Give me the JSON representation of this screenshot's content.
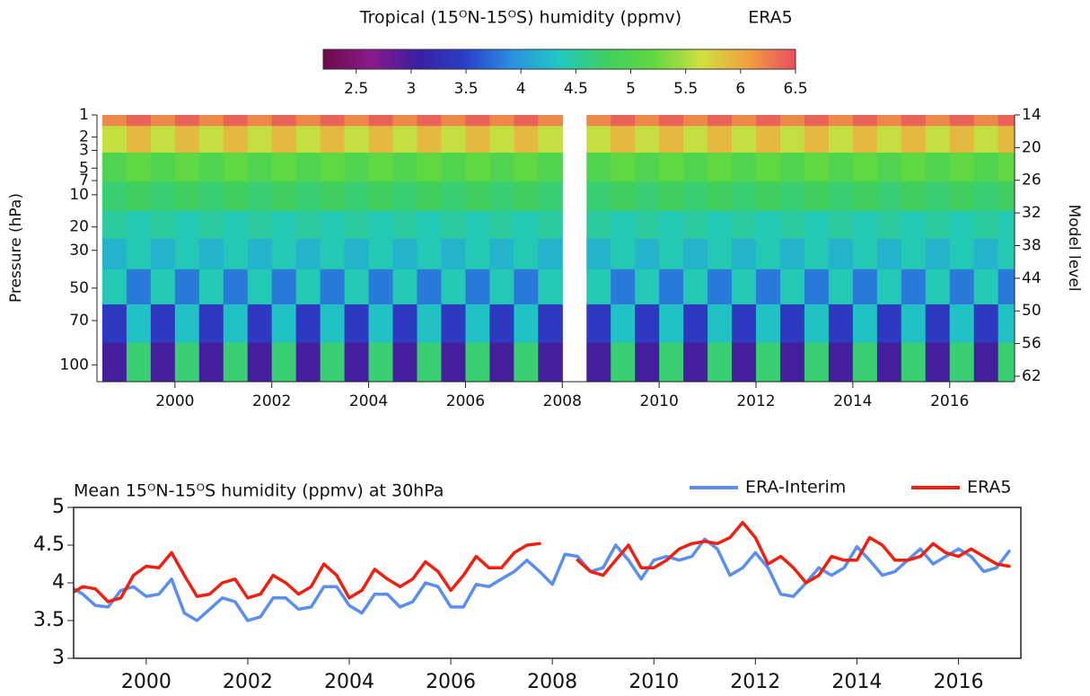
{
  "chart_data": [
    {
      "type": "heatmap",
      "title": "Tropical (15ᴼN-15ᴼS) humidity (ppmv)",
      "subtitle": "ERA5",
      "y_label": "Pressure (hPa)",
      "y2_label": "Model level",
      "clim": [
        2.2,
        6.5
      ],
      "cticks": [
        2.5,
        3,
        3.5,
        4,
        4.5,
        5,
        5.5,
        6,
        6.5
      ],
      "colormap": [
        "#6b0a4a",
        "#8a1a8a",
        "#3a1fa0",
        "#2840c8",
        "#2a90e0",
        "#20c8c0",
        "#40d060",
        "#60d840",
        "#d0e040",
        "#f0a040",
        "#e85060"
      ],
      "xlim": [
        1998.39,
        2017.34
      ],
      "xticks": [
        2000,
        2002,
        2004,
        2006,
        2008,
        2010,
        2012,
        2014,
        2016
      ],
      "ylim": [
        1,
        112
      ],
      "yticks": [
        1,
        2,
        3,
        5,
        7,
        10,
        20,
        30,
        50,
        70,
        100
      ],
      "y2lim": [
        14,
        63
      ],
      "y2ticks": [
        14,
        20,
        26,
        32,
        38,
        44,
        50,
        56,
        62
      ],
      "x": [
        1998.75,
        1999.25,
        1999.75,
        2000.25,
        2000.75,
        2001.25,
        2001.75,
        2002.25,
        2002.75,
        2003.25,
        2003.75,
        2004.25,
        2004.75,
        2005.25,
        2005.75,
        2006.25,
        2006.75,
        2007.25,
        2007.75,
        2008.25,
        2008.75,
        2009.25,
        2009.75,
        2010.25,
        2010.75,
        2011.25,
        2011.75,
        2012.25,
        2012.75,
        2013.25,
        2013.75,
        2014.25,
        2014.75,
        2015.25,
        2015.75,
        2016.25,
        2016.75,
        2017.25
      ],
      "levels": [
        1,
        2,
        5,
        10,
        20,
        30,
        50,
        70,
        100
      ],
      "values": [
        [
          6.2,
          6.4,
          6.2,
          6.4,
          6.2,
          6.4,
          6.2,
          6.4,
          6.2,
          6.4,
          6.2,
          6.4,
          6.2,
          6.4,
          6.2,
          6.4,
          6.2,
          6.4,
          6.2,
          null,
          6.2,
          6.4,
          6.2,
          6.4,
          6.2,
          6.4,
          6.2,
          6.4,
          6.2,
          6.4,
          6.2,
          6.4,
          6.2,
          6.4,
          6.2,
          6.4,
          6.2,
          6.4
        ],
        [
          5.6,
          5.9,
          5.6,
          5.9,
          5.6,
          5.9,
          5.6,
          5.9,
          5.6,
          5.9,
          5.6,
          5.9,
          5.6,
          5.9,
          5.6,
          5.9,
          5.6,
          5.9,
          5.6,
          null,
          5.6,
          5.9,
          5.6,
          5.9,
          5.6,
          5.9,
          5.6,
          5.9,
          5.6,
          5.9,
          5.6,
          5.9,
          5.6,
          5.9,
          5.6,
          5.9,
          5.6,
          5.9
        ],
        [
          5.0,
          5.2,
          5.0,
          5.2,
          5.0,
          5.2,
          5.0,
          5.2,
          5.0,
          5.2,
          5.0,
          5.2,
          5.0,
          5.2,
          5.0,
          5.2,
          5.0,
          5.2,
          5.0,
          null,
          5.0,
          5.2,
          5.0,
          5.2,
          5.0,
          5.2,
          5.0,
          5.2,
          5.0,
          5.2,
          5.0,
          5.2,
          5.0,
          5.2,
          5.0,
          5.2,
          5.0,
          5.2
        ],
        [
          4.7,
          4.8,
          4.7,
          4.8,
          4.7,
          4.8,
          4.7,
          4.8,
          4.7,
          4.8,
          4.7,
          4.8,
          4.7,
          4.8,
          4.7,
          4.8,
          4.7,
          4.8,
          4.7,
          null,
          4.7,
          4.8,
          4.7,
          4.8,
          4.7,
          4.8,
          4.7,
          4.8,
          4.7,
          4.8,
          4.7,
          4.8,
          4.7,
          4.8,
          4.7,
          4.8,
          4.7,
          4.8
        ],
        [
          4.5,
          4.4,
          4.5,
          4.4,
          4.5,
          4.4,
          4.5,
          4.4,
          4.5,
          4.4,
          4.5,
          4.4,
          4.5,
          4.4,
          4.5,
          4.4,
          4.5,
          4.4,
          4.5,
          null,
          4.5,
          4.4,
          4.5,
          4.4,
          4.5,
          4.4,
          4.5,
          4.4,
          4.5,
          4.4,
          4.5,
          4.4,
          4.5,
          4.4,
          4.5,
          4.4,
          4.5,
          4.4
        ],
        [
          4.2,
          4.4,
          4.2,
          4.4,
          4.2,
          4.4,
          4.2,
          4.4,
          4.2,
          4.4,
          4.2,
          4.4,
          4.2,
          4.4,
          4.2,
          4.4,
          4.2,
          4.4,
          4.2,
          null,
          4.2,
          4.4,
          4.2,
          4.4,
          4.2,
          4.4,
          4.2,
          4.4,
          4.2,
          4.4,
          4.2,
          4.4,
          4.2,
          4.4,
          4.2,
          4.4,
          4.2,
          4.4
        ],
        [
          4.4,
          3.8,
          4.4,
          3.8,
          4.4,
          3.8,
          4.4,
          3.8,
          4.4,
          3.8,
          4.4,
          3.8,
          4.4,
          3.8,
          4.4,
          3.8,
          4.4,
          3.8,
          4.4,
          null,
          4.4,
          3.8,
          4.4,
          3.8,
          4.4,
          3.8,
          4.4,
          3.8,
          4.4,
          3.8,
          4.4,
          3.8,
          4.4,
          3.8,
          4.4,
          3.8,
          4.4,
          3.8
        ],
        [
          3.4,
          4.3,
          3.4,
          4.3,
          3.4,
          4.3,
          3.4,
          4.3,
          3.4,
          4.3,
          3.4,
          4.3,
          3.4,
          4.3,
          3.4,
          4.3,
          3.4,
          4.3,
          3.4,
          null,
          3.4,
          4.3,
          3.4,
          4.3,
          3.4,
          4.3,
          3.4,
          4.3,
          3.4,
          4.3,
          3.4,
          4.3,
          3.4,
          4.3,
          3.4,
          4.3,
          3.4,
          4.3
        ],
        [
          3.0,
          4.7,
          3.0,
          4.7,
          3.0,
          4.7,
          3.0,
          4.7,
          3.0,
          4.7,
          3.0,
          4.7,
          3.0,
          4.7,
          3.0,
          4.7,
          3.0,
          4.7,
          3.0,
          null,
          3.0,
          4.7,
          3.0,
          4.7,
          3.0,
          4.7,
          3.0,
          4.7,
          3.0,
          4.7,
          3.0,
          4.7,
          3.0,
          4.7,
          3.0,
          4.7,
          3.0,
          4.7
        ]
      ]
    },
    {
      "type": "line",
      "title": "Mean 15ᴼN-15ᴼS humidity (ppmv) at 30hPa",
      "xlim": [
        1998.57,
        2017.23
      ],
      "xticks": [
        2000,
        2002,
        2004,
        2006,
        2008,
        2010,
        2012,
        2014,
        2016
      ],
      "ylim": [
        3,
        5
      ],
      "yticks": [
        3,
        3.5,
        4,
        4.5,
        5
      ],
      "x": [
        1998.5,
        1998.75,
        1999,
        1999.25,
        1999.5,
        1999.75,
        2000,
        2000.25,
        2000.5,
        2000.75,
        2001,
        2001.25,
        2001.5,
        2001.75,
        2002,
        2002.25,
        2002.5,
        2002.75,
        2003,
        2003.25,
        2003.5,
        2003.75,
        2004,
        2004.25,
        2004.5,
        2004.75,
        2005,
        2005.25,
        2005.5,
        2005.75,
        2006,
        2006.25,
        2006.5,
        2006.75,
        2007,
        2007.25,
        2007.5,
        2007.75,
        2008,
        2008.25,
        2008.5,
        2008.75,
        2009,
        2009.25,
        2009.5,
        2009.75,
        2010,
        2010.25,
        2010.5,
        2010.75,
        2011,
        2011.25,
        2011.5,
        2011.75,
        2012,
        2012.25,
        2012.5,
        2012.75,
        2013,
        2013.25,
        2013.5,
        2013.75,
        2014,
        2014.25,
        2014.5,
        2014.75,
        2015,
        2015.25,
        2015.5,
        2015.75,
        2016,
        2016.25,
        2016.5,
        2016.75,
        2017
      ],
      "series": [
        {
          "name": "ERA-Interim",
          "color": "#5a8ef0",
          "values": [
            3.95,
            3.85,
            3.7,
            3.68,
            3.9,
            3.95,
            3.82,
            3.85,
            4.05,
            3.6,
            3.5,
            3.65,
            3.8,
            3.75,
            3.5,
            3.55,
            3.8,
            3.8,
            3.65,
            3.68,
            3.95,
            3.95,
            3.7,
            3.6,
            3.85,
            3.85,
            3.68,
            3.75,
            4.0,
            3.95,
            3.68,
            3.68,
            3.98,
            3.95,
            4.05,
            4.15,
            4.3,
            4.15,
            3.98,
            4.38,
            4.35,
            4.15,
            4.2,
            4.5,
            4.3,
            4.05,
            4.3,
            4.35,
            4.3,
            4.35,
            4.58,
            4.45,
            4.1,
            4.2,
            4.4,
            4.2,
            3.85,
            3.82,
            4.0,
            4.2,
            4.1,
            4.2,
            4.48,
            4.3,
            4.1,
            4.15,
            4.3,
            4.45,
            4.25,
            4.35,
            4.45,
            4.35,
            4.15,
            4.2,
            4.42
          ]
        },
        {
          "name": "ERA5",
          "color": "#f02010",
          "values": [
            3.85,
            3.95,
            3.92,
            3.75,
            3.8,
            4.1,
            4.22,
            4.2,
            4.4,
            4.1,
            3.82,
            3.85,
            4.0,
            4.05,
            3.8,
            3.85,
            4.1,
            4.0,
            3.85,
            3.95,
            4.25,
            4.1,
            3.8,
            3.9,
            4.18,
            4.05,
            3.95,
            4.05,
            4.28,
            4.15,
            3.9,
            4.1,
            4.35,
            4.2,
            4.2,
            4.4,
            4.5,
            4.52,
            null,
            null,
            4.3,
            4.15,
            4.1,
            4.3,
            4.5,
            4.2,
            4.2,
            4.3,
            4.45,
            4.52,
            4.55,
            4.52,
            4.6,
            4.8,
            4.6,
            4.25,
            4.35,
            4.2,
            4.0,
            4.1,
            4.35,
            4.3,
            4.3,
            4.6,
            4.5,
            4.3,
            4.3,
            4.35,
            4.52,
            4.4,
            4.35,
            4.45,
            4.35,
            4.25,
            4.22
          ]
        }
      ]
    }
  ]
}
